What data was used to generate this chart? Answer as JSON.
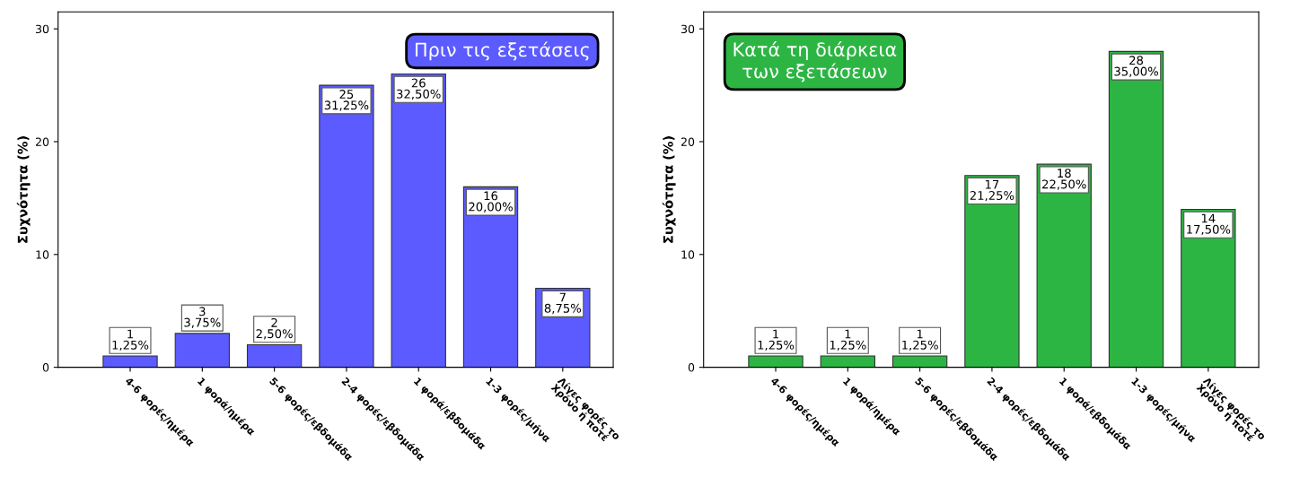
{
  "chart_data": [
    {
      "type": "bar",
      "title": "Πριν τις εξετάσεις",
      "ylabel": "Συχνότητα (%)",
      "categories": [
        "4-6 φορές/ημέρα",
        "1 φορά/ημέρα",
        "5-6 φορές/εβδομάδα",
        "2-4 φορές/εβδομάδα",
        "1 φορά/εβδομάδα",
        "1-3 φορές/μήνα",
        "Λίγες φορές το\nΧρόνο ή ποτέ"
      ],
      "series": [
        {
          "color": "#5b5bff",
          "values": [
            1,
            3,
            2,
            25,
            26,
            16,
            7
          ],
          "value_labels": [
            "1\n1,25%",
            "3\n3,75%",
            "2\n2,50%",
            "25\n31,25%",
            "26\n32,50%",
            "16\n20,00%",
            "7\n8,75%"
          ]
        }
      ],
      "ylim": [
        0,
        31.5
      ],
      "yticks": [
        0,
        10,
        20,
        30
      ],
      "grid": false,
      "legend": false
    },
    {
      "type": "bar",
      "title": "Κατά τη διάρκεια\nτων εξετάσεων",
      "ylabel": "Συχνότητα (%)",
      "categories": [
        "4-6 φορές/ημέρα",
        "1 φορά/ημέρα",
        "5-6 φορές/εβδομάδα",
        "2-4 φορές/εβδομάδα",
        "1 φορά/εβδομάδα",
        "1-3 φορές/μήνα",
        "Λίγες φορές το\nΧρόνο ή ποτέ"
      ],
      "series": [
        {
          "color": "#2db544",
          "values": [
            1,
            1,
            1,
            17,
            18,
            28,
            14
          ],
          "value_labels": [
            "1\n1,25%",
            "1\n1,25%",
            "1\n1,25%",
            "17\n21,25%",
            "18\n22,50%",
            "28\n35,00%",
            "14\n17,50%"
          ]
        }
      ],
      "ylim": [
        0,
        31.5
      ],
      "yticks": [
        0,
        10,
        20,
        30
      ],
      "grid": false,
      "legend": false
    }
  ]
}
